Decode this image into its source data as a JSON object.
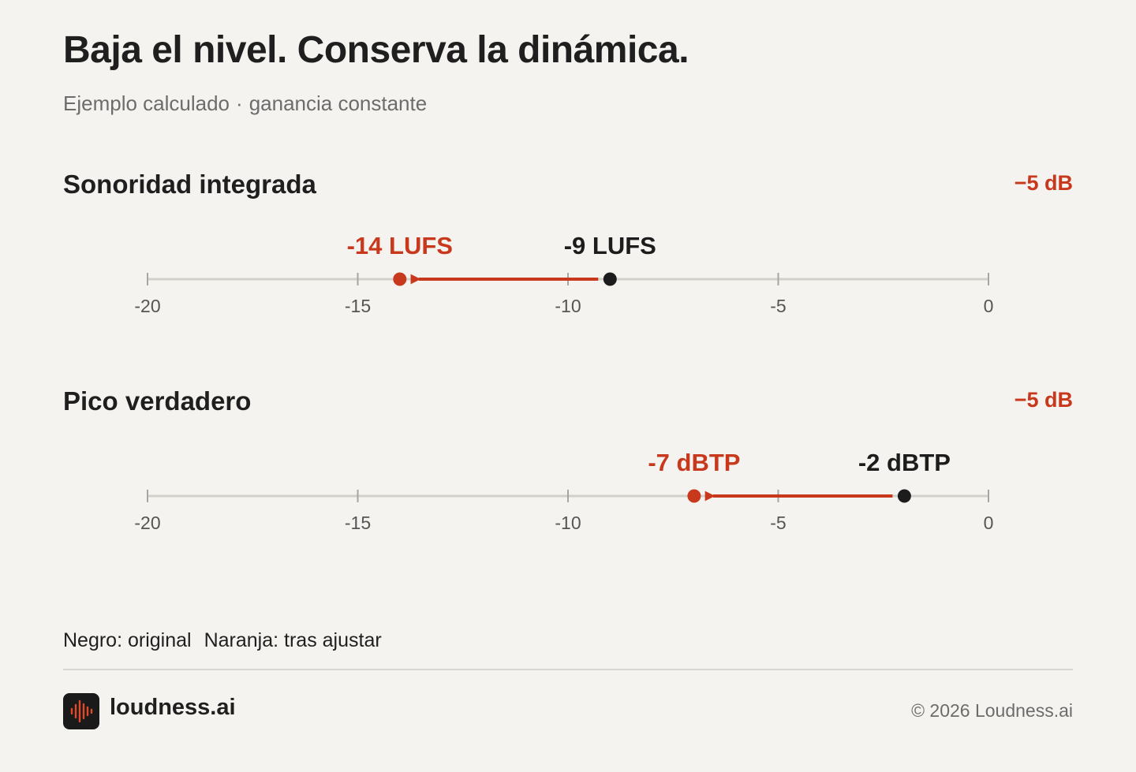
{
  "header": {
    "title": "Baja el nivel. Conserva la dinámica.",
    "subtitle_part1": "Ejemplo calculado",
    "subtitle_separator": "·",
    "subtitle_part2": "ganancia constante"
  },
  "chart_data": [
    {
      "type": "scatter",
      "title": "Sonoridad integrada",
      "delta_label": "−5 dB",
      "axis": {
        "xlim": [
          -20,
          0
        ],
        "ticks": [
          -20,
          -15,
          -10,
          -5,
          0
        ],
        "tick_labels": [
          "-20",
          "-15",
          "-10",
          "-5",
          "0"
        ]
      },
      "series": [
        {
          "name": "original",
          "x": -9,
          "label": "-9 LUFS"
        },
        {
          "name": "tras ajustar",
          "x": -14,
          "label": "-14 LUFS"
        }
      ]
    },
    {
      "type": "scatter",
      "title": "Pico verdadero",
      "delta_label": "−5 dB",
      "axis": {
        "xlim": [
          -20,
          0
        ],
        "ticks": [
          -20,
          -15,
          -10,
          -5,
          0
        ],
        "tick_labels": [
          "-20",
          "-15",
          "-10",
          "-5",
          "0"
        ]
      },
      "series": [
        {
          "name": "original",
          "x": -2,
          "label": "-2 dBTP"
        },
        {
          "name": "tras ajustar",
          "x": -7,
          "label": "-7 dBTP"
        }
      ]
    }
  ],
  "legend": {
    "original": "Negro: original",
    "adjusted": "Naranja: tras ajustar"
  },
  "colors": {
    "original": "#1c1c1c",
    "adjusted": "#c8381c",
    "axis": "#d2d0cb",
    "tick": "#a8a6a1",
    "tick_label": "#555555",
    "background": "#f5f3ef"
  },
  "footer": {
    "logo_icon": "waveform-icon",
    "brand_name": "loudness.ai",
    "copyright": "© 2026 Loudness.ai"
  }
}
